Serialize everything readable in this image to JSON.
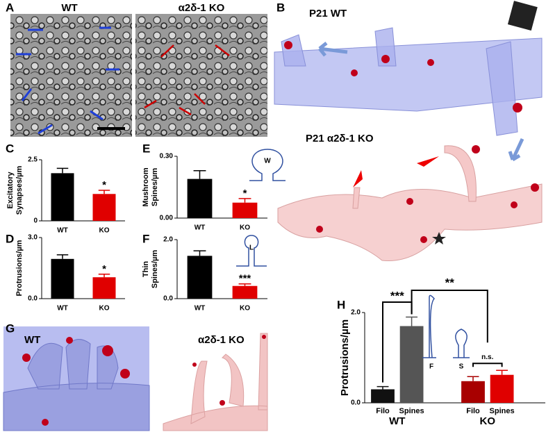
{
  "figure": {
    "panel_A": {
      "letter": "A",
      "left": "WT",
      "right": "α2δ-1 KO"
    },
    "panel_B": {
      "letter": "B",
      "top": "P21 WT",
      "bottom": "P21 α2δ-1 KO"
    },
    "panel_G": {
      "letter": "G",
      "left": "WT",
      "right": "α2δ-1 KO"
    }
  },
  "chart_data": [
    {
      "type": "bar",
      "panel": "C",
      "ylabel": [
        "Excitatory",
        "Synapses/µm"
      ],
      "categories": [
        "WT",
        "KO"
      ],
      "values": [
        1.95,
        1.1
      ],
      "errors": [
        0.2,
        0.15
      ],
      "colors": [
        "#000000",
        "#e00000"
      ],
      "ylim": [
        0,
        2.5
      ],
      "yticks": [
        0,
        2.5
      ],
      "annotations": [
        "*"
      ]
    },
    {
      "type": "bar",
      "panel": "E",
      "ylabel": [
        "Mushroom",
        "Spines/µm"
      ],
      "categories": [
        "WT",
        "KO"
      ],
      "values": [
        0.19,
        0.075
      ],
      "errors": [
        0.04,
        0.02
      ],
      "colors": [
        "#000000",
        "#e00000"
      ],
      "ylim": [
        0,
        0.3
      ],
      "yticks": [
        {
          "value": 0,
          "label": "0.00"
        },
        {
          "value": 0.3,
          "label": "0.30"
        }
      ],
      "annotations": [
        "*"
      ],
      "inset_label": "W"
    },
    {
      "type": "bar",
      "panel": "D",
      "ylabel": [
        "Protrusions/µm"
      ],
      "categories": [
        "WT",
        "KO"
      ],
      "values": [
        1.95,
        1.05
      ],
      "errors": [
        0.2,
        0.15
      ],
      "colors": [
        "#000000",
        "#e00000"
      ],
      "ylim": [
        0,
        3
      ],
      "yticks": [
        {
          "value": 0,
          "label": "0.0"
        },
        {
          "value": 3,
          "label": "3.0"
        }
      ],
      "annotations": [
        "*"
      ]
    },
    {
      "type": "bar",
      "panel": "F",
      "ylabel": [
        "Thin",
        "Spines/µm"
      ],
      "categories": [
        "WT",
        "KO"
      ],
      "values": [
        1.45,
        0.43
      ],
      "errors": [
        0.17,
        0.07
      ],
      "colors": [
        "#000000",
        "#e00000"
      ],
      "ylim": [
        0,
        2
      ],
      "yticks": [
        {
          "value": 0,
          "label": "0.0"
        },
        {
          "value": 2,
          "label": "2.0"
        }
      ],
      "annotations": [
        "***"
      ],
      "inset_label": "L"
    },
    {
      "type": "bar",
      "panel": "H",
      "ylabel": [
        "Protrusions/µm"
      ],
      "categories": [
        "Filo",
        "Spines",
        "Filo",
        "Spines"
      ],
      "groups": [
        "WT",
        "KO"
      ],
      "values": [
        0.3,
        1.7,
        0.48,
        0.62
      ],
      "errors": [
        0.06,
        0.2,
        0.1,
        0.1
      ],
      "colors": [
        "#111111",
        "#555555",
        "#a80000",
        "#e00000"
      ],
      "ylim": [
        0,
        2
      ],
      "yticks": [
        {
          "value": 0,
          "label": "0.0"
        },
        {
          "value": 2,
          "label": "2.0"
        }
      ],
      "annotations": [
        "***",
        "**",
        "n.s."
      ],
      "inset_labels": [
        "F",
        "S"
      ]
    }
  ]
}
